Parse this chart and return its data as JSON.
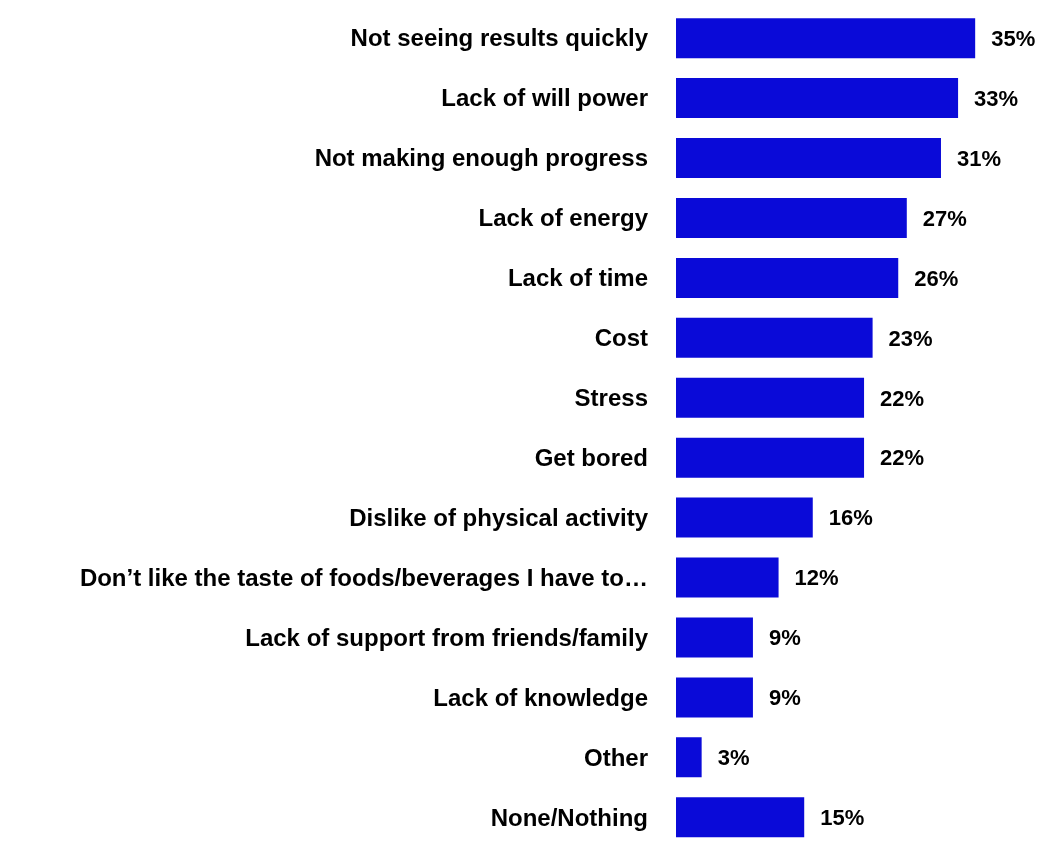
{
  "chart_data": {
    "type": "bar",
    "orientation": "horizontal",
    "categories": [
      "Not seeing results quickly",
      "Lack of will power",
      "Not making enough progress",
      "Lack of energy",
      "Lack of time",
      "Cost",
      "Stress",
      "Get bored",
      "Dislike of physical activity",
      "Don’t like the taste of foods/beverages I have to…",
      "Lack of support from friends/family",
      "Lack of knowledge",
      "Other",
      "None/Nothing"
    ],
    "values": [
      35,
      33,
      31,
      27,
      26,
      23,
      22,
      22,
      16,
      12,
      9,
      9,
      3,
      15
    ],
    "value_labels": [
      "35%",
      "33%",
      "31%",
      "27%",
      "26%",
      "23%",
      "22%",
      "22%",
      "16%",
      "12%",
      "9%",
      "9%",
      "3%",
      "15%"
    ],
    "color": "#0a0ad8",
    "grid": false,
    "legend": false
  }
}
